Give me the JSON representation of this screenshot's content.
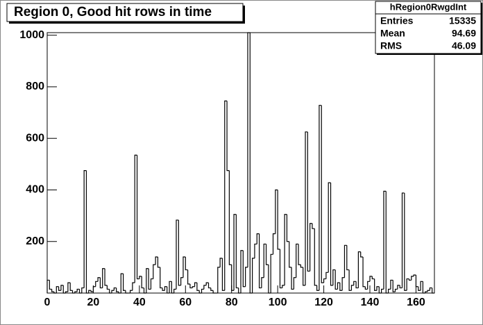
{
  "chart_data": {
    "type": "histogram",
    "title": "Region 0, Good hit rows in time",
    "stats": {
      "name": "hRegion0RwgdInt",
      "rows": [
        {
          "label": "Entries",
          "value": 15335
        },
        {
          "label": "Mean",
          "value": 94.69
        },
        {
          "label": "RMS",
          "value": 46.09
        }
      ]
    },
    "bins": [
      0,
      1,
      2,
      3,
      4,
      5,
      6,
      7,
      8,
      9,
      10,
      11,
      12,
      13,
      14,
      15,
      16,
      17,
      18,
      19,
      20,
      21,
      22,
      23,
      24,
      25,
      26,
      27,
      28,
      29,
      30,
      31,
      32,
      33,
      34,
      35,
      36,
      37,
      38,
      39,
      40,
      41,
      42,
      43,
      44,
      45,
      46,
      47,
      48,
      49,
      50,
      51,
      52,
      53,
      54,
      55,
      56,
      57,
      58,
      59,
      60,
      61,
      62,
      63,
      64,
      65,
      66,
      67,
      68,
      69,
      70,
      71,
      72,
      73,
      74,
      75,
      76,
      77,
      78,
      79,
      80,
      81,
      82,
      83,
      84,
      85,
      86,
      87,
      88,
      89,
      90,
      91,
      92,
      93,
      94,
      95,
      96,
      97,
      98,
      99,
      100,
      101,
      102,
      103,
      104,
      105,
      106,
      107,
      108,
      109,
      110,
      111,
      112,
      113,
      114,
      115,
      116,
      117,
      118,
      119,
      120,
      121,
      122,
      123,
      124,
      125,
      126,
      127,
      128,
      129,
      130,
      131,
      132,
      133,
      134,
      135,
      136,
      137,
      138,
      139,
      140,
      141,
      142,
      143,
      144,
      145,
      146,
      147,
      148,
      149,
      150,
      151,
      152,
      153,
      154,
      155,
      156,
      157,
      158,
      159,
      160,
      161,
      162,
      163,
      164,
      165,
      166,
      167,
      168
    ],
    "values": [
      50,
      15,
      5,
      0,
      25,
      10,
      30,
      0,
      5,
      40,
      10,
      0,
      5,
      15,
      0,
      20,
      475,
      0,
      10,
      5,
      25,
      45,
      60,
      20,
      95,
      30,
      15,
      0,
      10,
      20,
      5,
      0,
      75,
      10,
      0,
      0,
      10,
      40,
      535,
      55,
      65,
      20,
      0,
      95,
      15,
      55,
      110,
      140,
      100,
      20,
      10,
      25,
      0,
      45,
      0,
      15,
      283,
      30,
      60,
      140,
      90,
      35,
      20,
      25,
      40,
      10,
      0,
      15,
      30,
      40,
      20,
      10,
      0,
      0,
      100,
      135,
      10,
      745,
      475,
      110,
      10,
      305,
      20,
      0,
      165,
      25,
      100,
      1010,
      0,
      135,
      190,
      230,
      20,
      60,
      190,
      110,
      0,
      150,
      230,
      400,
      170,
      20,
      30,
      305,
      200,
      100,
      15,
      60,
      190,
      110,
      100,
      30,
      625,
      85,
      270,
      250,
      30,
      10,
      728,
      40,
      55,
      80,
      428,
      30,
      90,
      15,
      40,
      10,
      60,
      185,
      90,
      10,
      30,
      45,
      20,
      160,
      140,
      25,
      15,
      45,
      65,
      55,
      10,
      25,
      0,
      15,
      395,
      0,
      15,
      50,
      5,
      15,
      30,
      20,
      388,
      10,
      55,
      50,
      65,
      70,
      25,
      10,
      45,
      0,
      5,
      10,
      20,
      0
    ],
    "color": "#000000",
    "xlim": [
      0,
      168
    ],
    "xticks": [
      0,
      20,
      40,
      60,
      80,
      100,
      120,
      140,
      160
    ],
    "ylim": [
      0,
      1010
    ],
    "yticks": [
      200,
      400,
      600,
      800,
      1000
    ]
  }
}
